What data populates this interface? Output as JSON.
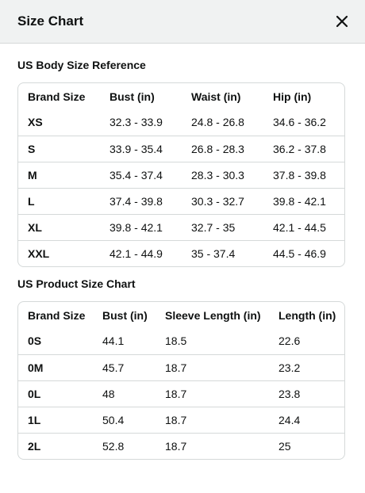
{
  "modal": {
    "title": "Size Chart"
  },
  "body_table": {
    "title": "US Body Size Reference",
    "headers": [
      "Brand Size",
      "Bust (in)",
      "Waist (in)",
      "Hip (in)"
    ],
    "rows": [
      [
        "XS",
        "32.3 - 33.9",
        "24.8 - 26.8",
        "34.6 - 36.2"
      ],
      [
        "S",
        "33.9 - 35.4",
        "26.8 - 28.3",
        "36.2 - 37.8"
      ],
      [
        "M",
        "35.4 - 37.4",
        "28.3 - 30.3",
        "37.8 - 39.8"
      ],
      [
        "L",
        "37.4 - 39.8",
        "30.3 - 32.7",
        "39.8 - 42.1"
      ],
      [
        "XL",
        "39.8 - 42.1",
        "32.7 - 35",
        "42.1 - 44.5"
      ],
      [
        "XXL",
        "42.1 - 44.9",
        "35 - 37.4",
        "44.5 - 46.9"
      ]
    ]
  },
  "product_table": {
    "title": "US Product Size Chart",
    "headers": [
      "Brand Size",
      "Bust (in)",
      "Sleeve Length (in)",
      "Length (in)"
    ],
    "rows": [
      [
        "0S",
        "44.1",
        "18.5",
        "22.6"
      ],
      [
        "0M",
        "45.7",
        "18.7",
        "23.2"
      ],
      [
        "0L",
        "48",
        "18.7",
        "23.8"
      ],
      [
        "1L",
        "50.4",
        "18.7",
        "24.4"
      ],
      [
        "2L",
        "52.8",
        "18.7",
        "25"
      ]
    ]
  }
}
